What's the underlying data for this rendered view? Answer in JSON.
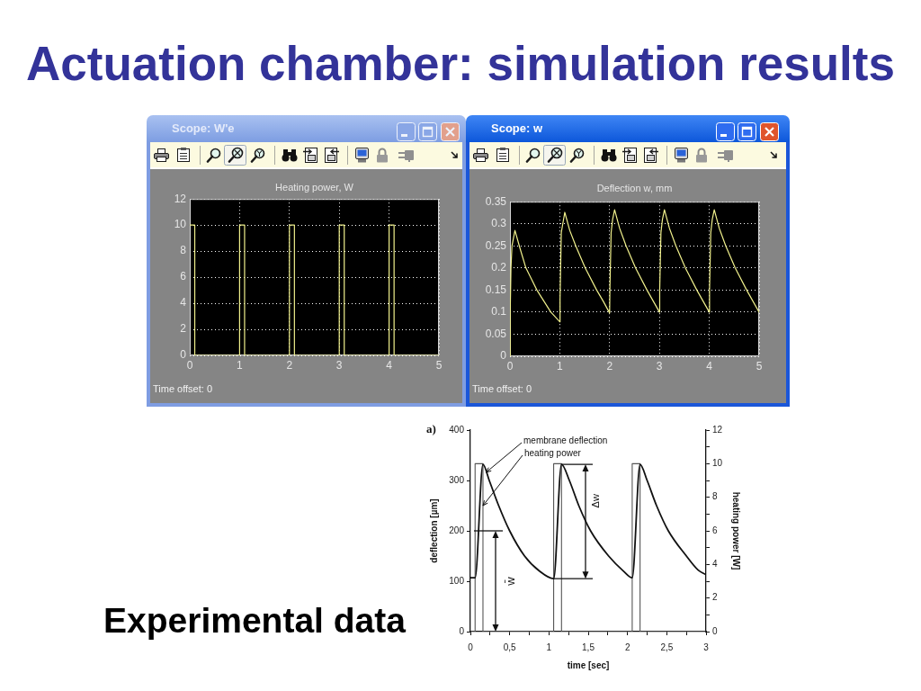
{
  "chart_data": [
    {
      "type": "other",
      "title": "Actuation chamber: simulation results"
    },
    {
      "type": "step",
      "title": "Heating power, W",
      "x": [
        0,
        0.1,
        1,
        1.1,
        2,
        2.1,
        3,
        3.1,
        4,
        4.1,
        5
      ],
      "values": [
        10,
        0,
        10,
        0,
        10,
        0,
        10,
        0,
        10,
        0,
        0
      ],
      "color": "#f0f08c",
      "xlim": [
        0,
        5
      ],
      "xticks": [
        0,
        1,
        2,
        3,
        4,
        5
      ],
      "ylim": [
        0,
        12
      ],
      "yticks": [
        0,
        2,
        4,
        6,
        8,
        10,
        12
      ],
      "grid": true,
      "annotations": [
        "Scope: W'e",
        "Time offset: 0"
      ]
    },
    {
      "type": "line",
      "title": "Deflection w, mm",
      "x": [
        0,
        0.005,
        0.02,
        0.04,
        0.1,
        0.2,
        0.32,
        0.43,
        0.54,
        0.68,
        0.82,
        1,
        1.005,
        1.03,
        1.06,
        1.1,
        1.2,
        1.32,
        1.51,
        1.74,
        1.87,
        2,
        2.005,
        2.03,
        2.06,
        2.1,
        2.2,
        2.33,
        2.52,
        2.75,
        3,
        3.005,
        3.03,
        3.06,
        3.1,
        3.2,
        3.33,
        3.52,
        3.75,
        4,
        4.005,
        4.03,
        4.06,
        4.1,
        4.2,
        4.33,
        4.52,
        4.75,
        5
      ],
      "values": [
        0,
        0.1,
        0.2,
        0.25,
        0.285,
        0.245,
        0.2,
        0.175,
        0.15,
        0.125,
        0.1,
        0.078,
        0.13,
        0.28,
        0.3,
        0.326,
        0.285,
        0.25,
        0.2,
        0.15,
        0.125,
        0.098,
        0.15,
        0.28,
        0.31,
        0.332,
        0.29,
        0.25,
        0.2,
        0.15,
        0.1,
        0.15,
        0.28,
        0.31,
        0.332,
        0.29,
        0.25,
        0.2,
        0.15,
        0.1,
        0.15,
        0.28,
        0.31,
        0.332,
        0.29,
        0.25,
        0.2,
        0.15,
        0.1
      ],
      "color": "#f0f08c",
      "xlim": [
        0,
        5
      ],
      "xticks": [
        0,
        1,
        2,
        3,
        4,
        5
      ],
      "ylim": [
        0,
        0.35
      ],
      "yticks": [
        0,
        0.05,
        0.1,
        0.15,
        0.2,
        0.25,
        0.3,
        0.35
      ],
      "grid": true,
      "annotations": [
        "Scope: w",
        "Time offset: 0"
      ]
    },
    {
      "type": "line",
      "title": "Experimental data",
      "xlabel": "time [sec]",
      "ylabel": "deflection [µm]",
      "y2label": "heating power [W]",
      "series": [
        {
          "name": "membrane deflection",
          "color": "#111111",
          "x": [
            0,
            0.06,
            0.16,
            0.24,
            0.36,
            0.5,
            0.69,
            0.88,
            1.06,
            1.16,
            1.26,
            1.38,
            1.53,
            1.76,
            1.95,
            2.06,
            2.16,
            2.25,
            2.37,
            2.52,
            2.75,
            2.9,
            3
          ],
          "values": [
            107,
            107,
            332,
            300,
            250,
            200,
            150,
            120,
            105,
            332,
            300,
            250,
            200,
            150,
            120,
            107,
            332,
            300,
            250,
            200,
            150,
            122,
            113
          ]
        },
        {
          "name": "heating power",
          "type": "step",
          "axis": "y2",
          "color": "#555555",
          "x": [
            0,
            0.06,
            0.16,
            1.06,
            1.16,
            2.06,
            2.16,
            3
          ],
          "values": [
            0,
            10,
            0,
            10,
            0,
            10,
            0,
            0
          ]
        }
      ],
      "xlim": [
        0,
        3
      ],
      "xticks": [
        0,
        {
          "value": 0.25,
          "label": null
        },
        {
          "value": 0.5,
          "label": "0,5"
        },
        {
          "value": 0.75,
          "label": null
        },
        1,
        {
          "value": 1.25,
          "label": null
        },
        {
          "value": 1.5,
          "label": "1,5"
        },
        {
          "value": 1.75,
          "label": null
        },
        2,
        {
          "value": 2.25,
          "label": null
        },
        {
          "value": 2.5,
          "label": "2,5"
        },
        {
          "value": 2.75,
          "label": null
        },
        3
      ],
      "ylim": [
        0,
        400
      ],
      "yticks": [
        0,
        100,
        200,
        300,
        400
      ],
      "y2lim": [
        0,
        12
      ],
      "y2ticks": [
        0,
        {
          "value": 1,
          "label": null
        },
        2,
        {
          "value": 3,
          "label": null
        },
        4,
        {
          "value": 5,
          "label": null
        },
        6,
        {
          "value": 7,
          "label": null
        },
        8,
        {
          "value": 9,
          "label": null
        },
        10,
        {
          "value": 11,
          "label": null
        },
        12
      ],
      "ref_lines": [
        {
          "axis": "y",
          "value": 200,
          "color": "#111111"
        },
        {
          "axis": "y",
          "value": 332,
          "color": "#111111"
        },
        {
          "axis": "y",
          "value": 105,
          "color": "#111111"
        }
      ],
      "annotations": [
        "a)",
        "w̄",
        "Δw"
      ]
    }
  ]
}
